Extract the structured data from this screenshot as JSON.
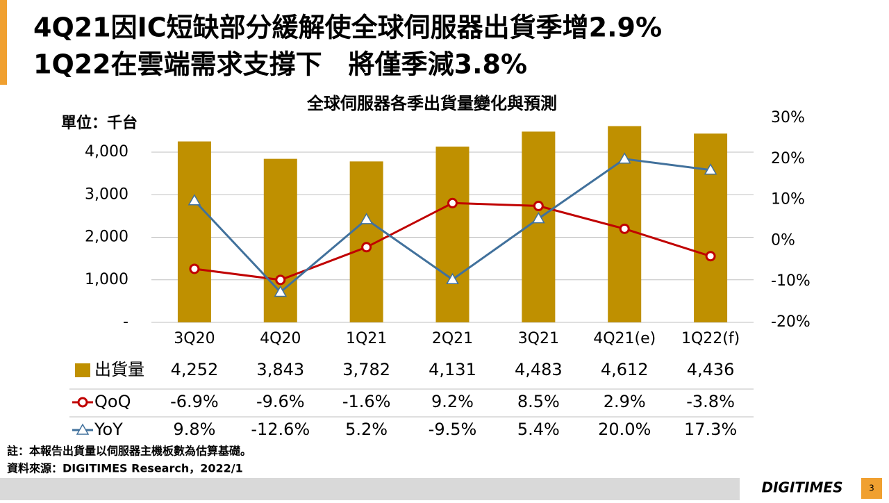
{
  "slide": {
    "title_lines": [
      "4Q21因IC短缺部分緩解使全球伺服器出貨季增2.9%",
      "1Q22在雲端需求支撐下　將僅季減3.8%"
    ],
    "notes": [
      "註：本報告出貨量以伺服器主機板數為估算基礎。",
      "資料來源：DIGITIMES Research，2022/1"
    ],
    "logo": "DIGITIMES",
    "page_number": "3"
  },
  "chart_data": {
    "type": "combo",
    "title": "全球伺服器各季出貨量變化與預測",
    "y_label": "單位：千台",
    "categories": [
      "3Q20",
      "4Q20",
      "1Q21",
      "2Q21",
      "3Q21",
      "4Q21(e)",
      "1Q22(f)"
    ],
    "ylim": [
      0,
      4800
    ],
    "yticks": [
      {
        "value": 0,
        "label": "-"
      },
      {
        "value": 1000,
        "label": "1,000"
      },
      {
        "value": 2000,
        "label": "2,000"
      },
      {
        "value": 3000,
        "label": "3,000"
      },
      {
        "value": 4000,
        "label": "4,000"
      }
    ],
    "y2lim": [
      -20,
      30
    ],
    "y2ticks": [
      {
        "value": -20,
        "label": "-20%"
      },
      {
        "value": -10,
        "label": "-10%"
      },
      {
        "value": 0,
        "label": "0%"
      },
      {
        "value": 10,
        "label": "10%"
      },
      {
        "value": 20,
        "label": "20%"
      },
      {
        "value": 30,
        "label": "30%"
      }
    ],
    "grid": true,
    "series": [
      {
        "name": "出貨量",
        "type": "bar",
        "color": "#bf9000",
        "values": [
          4252,
          3843,
          3782,
          4131,
          4483,
          4612,
          4436
        ],
        "value_labels": [
          "4,252",
          "3,843",
          "3,782",
          "4,131",
          "4,483",
          "4,612",
          "4,436"
        ]
      },
      {
        "name": "QoQ",
        "type": "line",
        "marker": "circle",
        "axis": "y2",
        "color": "#c00000",
        "values": [
          -6.9,
          -9.6,
          -1.6,
          9.2,
          8.5,
          2.9,
          -3.8
        ],
        "value_labels": [
          "-6.9%",
          "-9.6%",
          "-1.6%",
          "9.2%",
          "8.5%",
          "2.9%",
          "-3.8%"
        ]
      },
      {
        "name": "YoY",
        "type": "line",
        "marker": "triangle",
        "axis": "y2",
        "color": "#41719c",
        "values": [
          9.8,
          -12.6,
          5.2,
          -9.5,
          5.4,
          20.0,
          17.3
        ],
        "value_labels": [
          "9.8%",
          "-12.6%",
          "5.2%",
          "-9.5%",
          "5.4%",
          "20.0%",
          "17.3%"
        ]
      }
    ]
  }
}
